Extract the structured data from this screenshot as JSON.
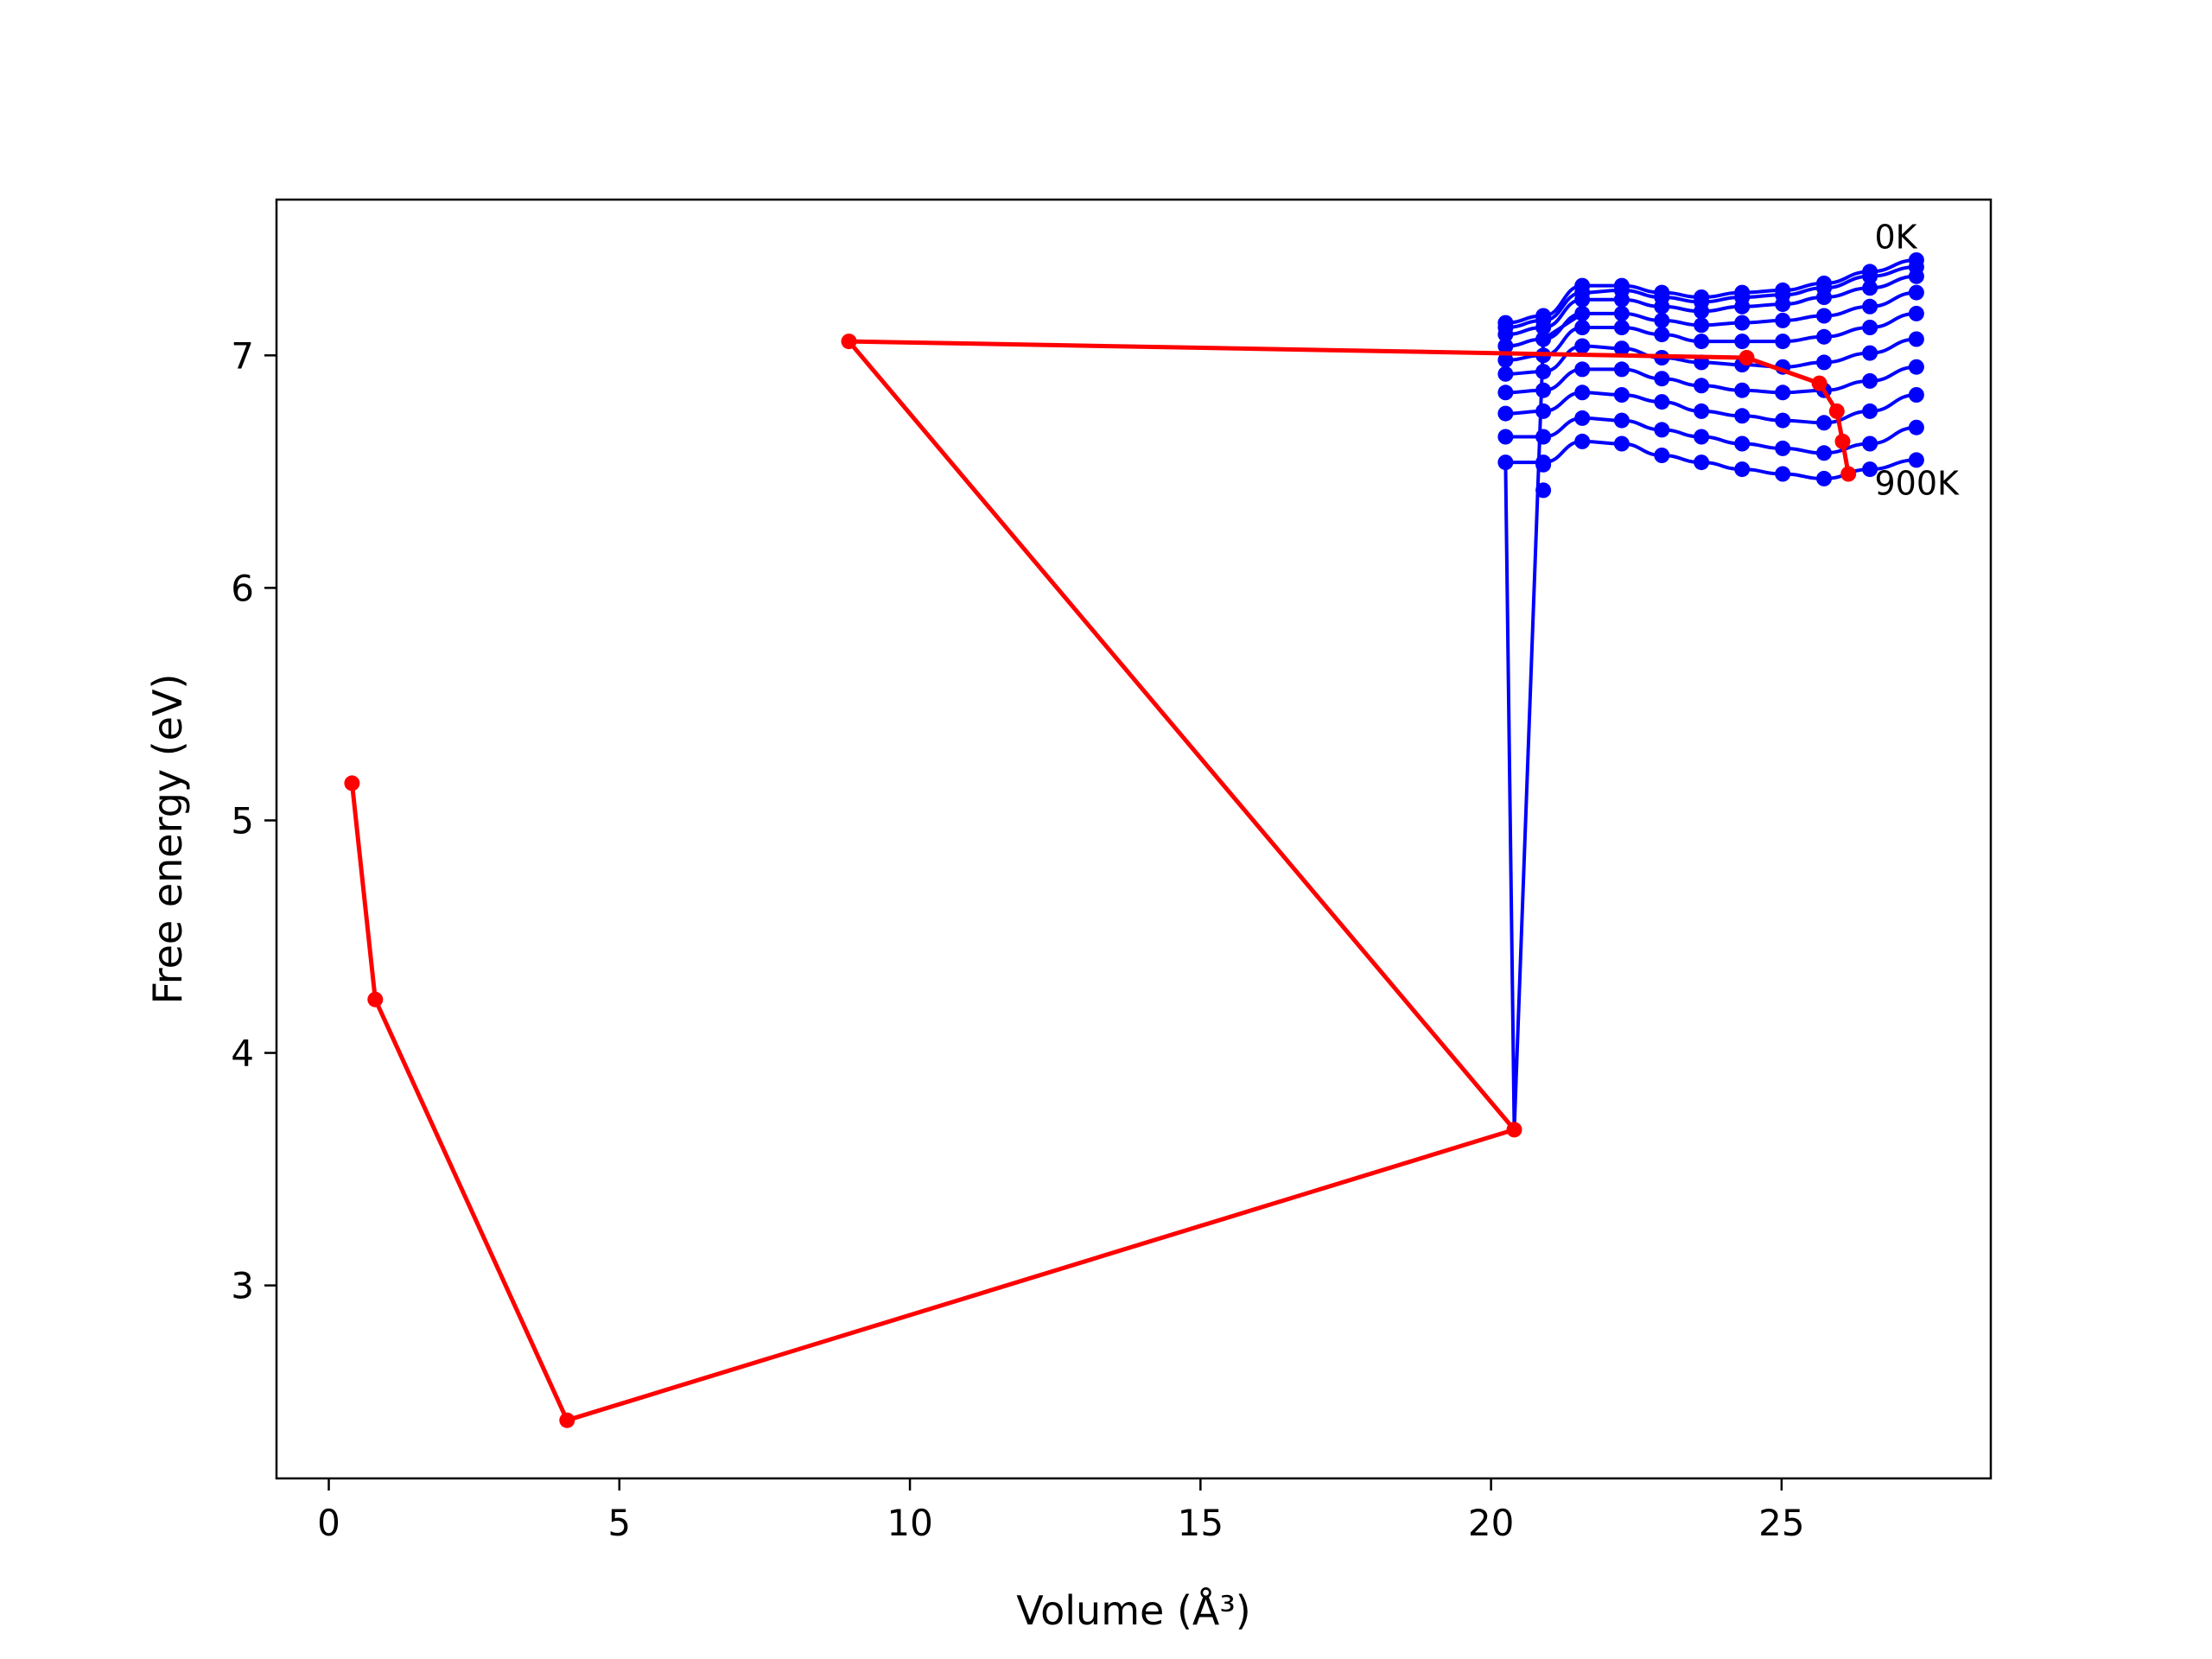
{
  "chart_data": {
    "type": "line",
    "xlabel": "Volume (Å³)",
    "ylabel": "Free energy (eV)",
    "xlim": [
      -0.9,
      28.6
    ],
    "ylim": [
      2.17,
      7.67
    ],
    "xticks": [
      0,
      5,
      10,
      15,
      20,
      25
    ],
    "yticks": [
      3,
      4,
      5,
      6,
      7
    ],
    "grid": false,
    "annotations": [
      {
        "text": "0K",
        "x": 26.6,
        "y": 7.46
      },
      {
        "text": "900K",
        "x": 26.6,
        "y": 6.4
      }
    ],
    "colors": {
      "curves": "#0000ff",
      "minima": "#ff0000"
    },
    "volumes": [
      20.25,
      20.9,
      21.57,
      22.25,
      22.94,
      23.62,
      24.32,
      25.02,
      25.73,
      26.52,
      27.32
    ],
    "series": [
      {
        "values": [
          7.14,
          7.17,
          7.3,
          7.3,
          7.27,
          7.25,
          7.27,
          7.28,
          7.31,
          7.36,
          7.41
        ]
      },
      {
        "values": [
          7.12,
          7.15,
          7.27,
          7.28,
          7.25,
          7.23,
          7.25,
          7.26,
          7.29,
          7.34,
          7.38
        ]
      },
      {
        "values": [
          7.09,
          7.12,
          7.24,
          7.24,
          7.21,
          7.19,
          7.21,
          7.22,
          7.25,
          7.29,
          7.34
        ]
      },
      {
        "values": [
          7.04,
          7.07,
          7.18,
          7.18,
          7.15,
          7.13,
          7.14,
          7.15,
          7.17,
          7.21,
          7.27
        ]
      },
      {
        "values": [
          6.98,
          7.0,
          7.12,
          7.12,
          7.09,
          7.06,
          7.06,
          7.06,
          7.08,
          7.12,
          7.18
        ]
      },
      {
        "values": [
          6.92,
          6.93,
          7.04,
          7.03,
          6.99,
          6.97,
          6.96,
          6.95,
          6.97,
          7.01,
          7.07
        ]
      },
      {
        "values": [
          6.84,
          6.85,
          6.94,
          6.94,
          6.9,
          6.87,
          6.85,
          6.84,
          6.85,
          6.89,
          6.95
        ]
      },
      {
        "values": [
          6.75,
          6.76,
          6.84,
          6.83,
          6.8,
          6.76,
          6.74,
          6.72,
          6.71,
          6.76,
          6.83
        ]
      },
      {
        "values": [
          6.65,
          6.65,
          6.73,
          6.72,
          6.68,
          6.65,
          6.62,
          6.6,
          6.58,
          6.62,
          6.69
        ]
      },
      {
        "values": [
          6.54,
          6.54,
          6.63,
          6.62,
          6.57,
          6.54,
          6.51,
          6.49,
          6.47,
          6.51,
          6.55
        ]
      }
    ],
    "minima_line": {
      "x": [
        0.4,
        0.8,
        4.1,
        20.4,
        8.95,
        24.4,
        25.65,
        25.95,
        26.05,
        26.15
      ],
      "y": [
        5.16,
        4.23,
        2.42,
        3.67,
        7.06,
        6.99,
        6.88,
        6.76,
        6.63,
        6.49
      ]
    },
    "extra_points": [
      {
        "x": 20.9,
        "y": 6.42
      },
      {
        "x": 20.9,
        "y": 6.53
      }
    ]
  }
}
